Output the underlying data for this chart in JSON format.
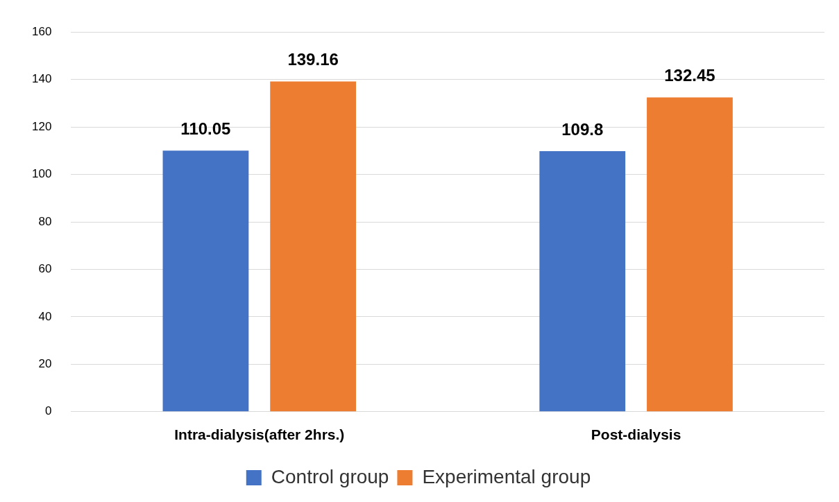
{
  "chart_data": {
    "type": "bar",
    "categories": [
      "Intra-dialysis(after 2hrs.)",
      "Post-dialysis"
    ],
    "series": [
      {
        "name": "Control group",
        "color": "#4472c4",
        "values": [
          110.05,
          109.8
        ]
      },
      {
        "name": "Experimental group",
        "color": "#ed7d31",
        "values": [
          139.16,
          132.45
        ]
      }
    ],
    "ylim": [
      0,
      160
    ],
    "yticks": [
      0,
      20,
      40,
      60,
      80,
      100,
      120,
      140,
      160
    ],
    "grid": "y",
    "legend": "bottom",
    "data_labels": true
  }
}
